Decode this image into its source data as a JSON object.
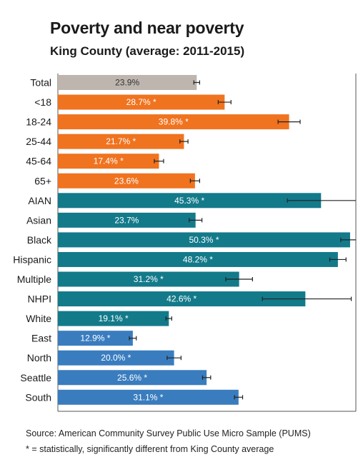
{
  "header": {
    "title": "Poverty and near poverty",
    "subtitle": "King County (average: 2011-2015)"
  },
  "footer": {
    "source": "Source: American Community Survey Public Use Micro Sample (PUMS)",
    "note": "* = statistically, significantly different from King County average"
  },
  "colors": {
    "total": "#bdb5ae",
    "age": "#f0731f",
    "race": "#137a8a",
    "region": "#3a7dbf"
  },
  "chart_data": {
    "type": "bar",
    "orientation": "horizontal",
    "xlim": [
      0,
      55
    ],
    "grid": false,
    "categories": [
      "Total",
      "<18",
      "18-24",
      "25-44",
      "45-64",
      "65+",
      "AIAN",
      "Asian",
      "Black",
      "Hispanic",
      "Multiple",
      "NHPI",
      "White",
      "East",
      "North",
      "Seattle",
      "South"
    ],
    "values": [
      23.9,
      28.7,
      39.8,
      21.7,
      17.4,
      23.6,
      45.3,
      23.7,
      50.3,
      48.2,
      31.2,
      42.6,
      19.1,
      12.9,
      20.0,
      25.6,
      31.1
    ],
    "labels": [
      "23.9%",
      "28.7% *",
      "39.8% *",
      "21.7% *",
      "17.4% *",
      "23.6%",
      "45.3% *",
      "23.7%",
      "50.3% *",
      "48.2% *",
      "31.2% *",
      "42.6% *",
      "19.1% *",
      "12.9% *",
      "20.0% *",
      "25.6% *",
      "31.1% *"
    ],
    "groups": [
      "total",
      "age",
      "age",
      "age",
      "age",
      "age",
      "race",
      "race",
      "race",
      "race",
      "race",
      "race",
      "race",
      "region",
      "region",
      "region",
      "region"
    ],
    "ci_low": [
      23.4,
      27.6,
      37.9,
      21.0,
      16.6,
      22.8,
      39.5,
      22.6,
      48.7,
      46.8,
      28.9,
      35.2,
      18.6,
      12.3,
      18.8,
      24.9,
      30.4
    ],
    "ci_high": [
      24.4,
      29.8,
      41.7,
      22.4,
      18.2,
      24.4,
      51.5,
      24.8,
      51.9,
      49.6,
      33.5,
      50.5,
      19.6,
      13.5,
      21.2,
      26.3,
      31.8
    ]
  }
}
